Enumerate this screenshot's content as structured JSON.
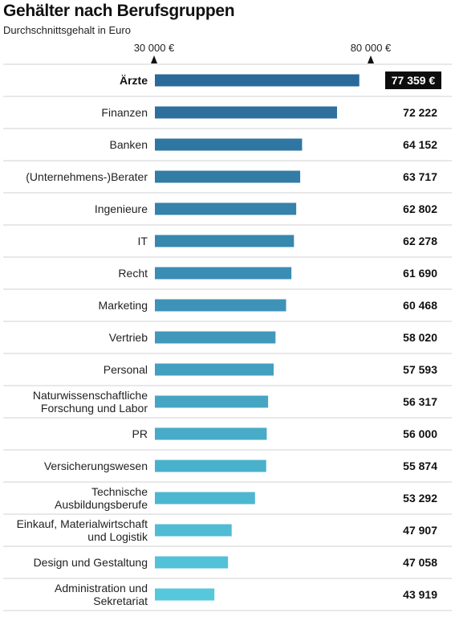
{
  "chart_data": {
    "type": "bar",
    "orientation": "horizontal",
    "title": "Gehälter nach Berufsgruppen",
    "subtitle": "Durchschnittsgehalt in Euro",
    "reference_ticks": [
      {
        "value": 30000,
        "label": "30 000 €"
      },
      {
        "value": 80000,
        "label": "80 000 €"
      }
    ],
    "categories": [
      [
        "Ärzte"
      ],
      [
        "Finanzen"
      ],
      [
        "Banken"
      ],
      [
        "(Unternehmens-)Berater"
      ],
      [
        "Ingenieure"
      ],
      [
        "IT"
      ],
      [
        "Recht"
      ],
      [
        "Marketing"
      ],
      [
        "Vertrieb"
      ],
      [
        "Personal"
      ],
      [
        "Naturwissenschaftliche",
        "Forschung und Labor"
      ],
      [
        "PR"
      ],
      [
        "Versicherungswesen"
      ],
      [
        "Technische",
        "Ausbildungsberufe"
      ],
      [
        "Einkauf, Materialwirtschaft",
        "und Logistik"
      ],
      [
        "Design und Gestaltung"
      ],
      [
        "Administration und",
        "Sekretariat"
      ]
    ],
    "values": [
      77359,
      72222,
      64152,
      63717,
      62802,
      62278,
      61690,
      60468,
      58020,
      57593,
      56317,
      56000,
      55874,
      53292,
      47907,
      47058,
      43919
    ],
    "value_labels": [
      "77 359 €",
      "72 222",
      "64 152",
      "63 717",
      "62 802",
      "62 278",
      "61 690",
      "60 468",
      "58 020",
      "57 593",
      "56 317",
      "56 000",
      "55 874",
      "53 292",
      "47 907",
      "47 058",
      "43 919"
    ],
    "highlighted_index": 0,
    "colors": {
      "bar_start": "#2a6a9a",
      "bar_end": "#55c8dc",
      "highlight_bg": "#0d0d0d",
      "highlight_text": "#ffffff",
      "row_divider": "#d2d2d2",
      "tick_marker": "#111111"
    }
  }
}
